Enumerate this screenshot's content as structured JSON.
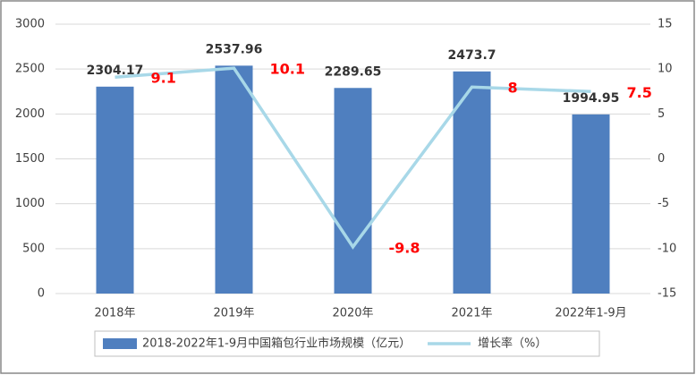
{
  "chart_data": {
    "type": "bar",
    "categories": [
      "2018年",
      "2019年",
      "2020年",
      "2021年",
      "2022年1-9月"
    ],
    "series": [
      {
        "name": "2018-2022年1-9月中国箱包行业市场规模（亿元）",
        "type": "bar",
        "color": "#4f7fbf",
        "values": [
          2304.17,
          2537.96,
          2289.65,
          2473.7,
          1994.95
        ]
      },
      {
        "name": "增长率（%）",
        "type": "line",
        "color": "#a8d8e8",
        "axis": "y2",
        "values": [
          9.1,
          10.1,
          -9.8,
          8,
          7.5
        ]
      }
    ],
    "ylim": [
      0,
      3000
    ],
    "yticks": [
      0,
      500,
      1000,
      1500,
      2000,
      2500,
      3000
    ],
    "y2lim": [
      -15,
      15
    ],
    "y2ticks": [
      -15,
      -10,
      -5,
      0,
      5,
      10,
      15
    ],
    "grid": true
  }
}
